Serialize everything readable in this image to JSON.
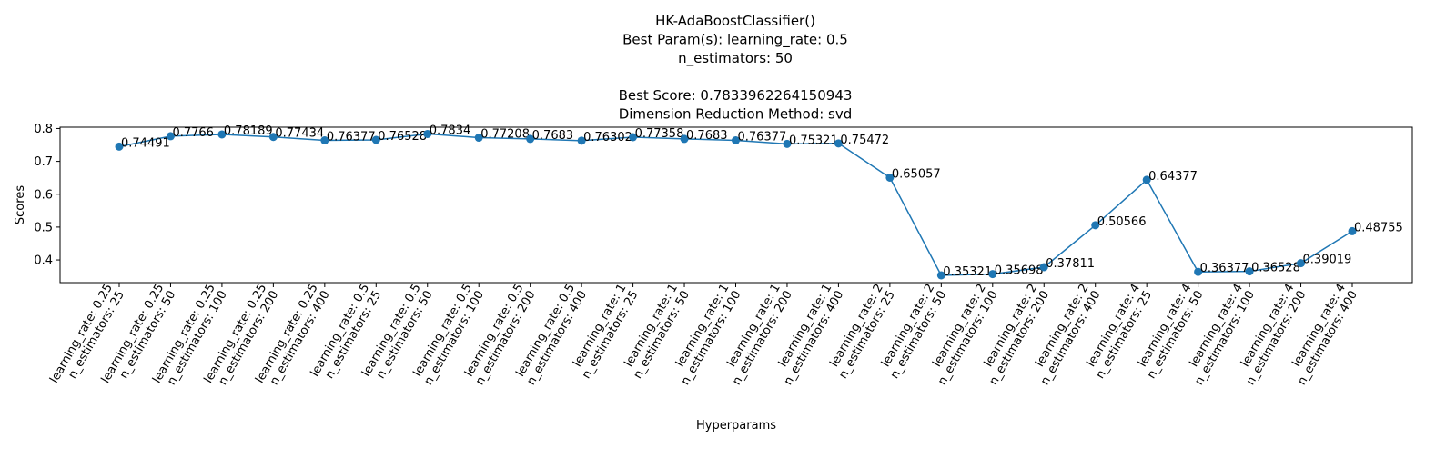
{
  "chart_data": {
    "type": "line",
    "title_lines": [
      "HK-AdaBoostClassifier()",
      "Best Param(s): learning_rate: 0.5",
      "n_estimators: 50",
      "",
      "Best Score: 0.7833962264150943",
      "Dimension Reduction Method: svd"
    ],
    "xlabel": "Hyperparams",
    "ylabel": "Scores",
    "categories": [
      [
        "learning_rate: 0.25",
        "n_estimators: 25"
      ],
      [
        "learning_rate: 0.25",
        "n_estimators: 50"
      ],
      [
        "learning_rate: 0.25",
        "n_estimators: 100"
      ],
      [
        "learning_rate: 0.25",
        "n_estimators: 200"
      ],
      [
        "learning_rate: 0.25",
        "n_estimators: 400"
      ],
      [
        "learning_rate: 0.5",
        "n_estimators: 25"
      ],
      [
        "learning_rate: 0.5",
        "n_estimators: 50"
      ],
      [
        "learning_rate: 0.5",
        "n_estimators: 100"
      ],
      [
        "learning_rate: 0.5",
        "n_estimators: 200"
      ],
      [
        "learning_rate: 0.5",
        "n_estimators: 400"
      ],
      [
        "learning_rate: 1",
        "n_estimators: 25"
      ],
      [
        "learning_rate: 1",
        "n_estimators: 50"
      ],
      [
        "learning_rate: 1",
        "n_estimators: 100"
      ],
      [
        "learning_rate: 1",
        "n_estimators: 200"
      ],
      [
        "learning_rate: 1",
        "n_estimators: 400"
      ],
      [
        "learning_rate: 2",
        "n_estimators: 25"
      ],
      [
        "learning_rate: 2",
        "n_estimators: 50"
      ],
      [
        "learning_rate: 2",
        "n_estimators: 100"
      ],
      [
        "learning_rate: 2",
        "n_estimators: 200"
      ],
      [
        "learning_rate: 2",
        "n_estimators: 400"
      ],
      [
        "learning_rate: 4",
        "n_estimators: 25"
      ],
      [
        "learning_rate: 4",
        "n_estimators: 50"
      ],
      [
        "learning_rate: 4",
        "n_estimators: 100"
      ],
      [
        "learning_rate: 4",
        "n_estimators: 200"
      ],
      [
        "learning_rate: 4",
        "n_estimators: 400"
      ]
    ],
    "values": [
      0.74491,
      0.7766,
      0.78189,
      0.77434,
      0.76377,
      0.76528,
      0.7834,
      0.77208,
      0.7683,
      0.76302,
      0.77358,
      0.7683,
      0.76377,
      0.75321,
      0.75472,
      0.65057,
      0.35321,
      0.35698,
      0.37811,
      0.50566,
      0.64377,
      0.36377,
      0.36528,
      0.39019,
      0.48755
    ],
    "value_labels": [
      "0.74491",
      "0.7766",
      "0.78189",
      "0.77434",
      "0.76377",
      "0.76528",
      "0.7834",
      "0.77208",
      "0.7683",
      "0.76302",
      "0.77358",
      "0.7683",
      "0.76377",
      "0.75321",
      "0.75472",
      "0.65057",
      "0.35321",
      "0.35698",
      "0.37811",
      "0.50566",
      "0.64377",
      "0.36377",
      "0.36528",
      "0.39019",
      "0.48755"
    ],
    "yticks": [
      0.4,
      0.5,
      0.6,
      0.7,
      0.8
    ],
    "ytick_labels": [
      "0.4",
      "0.5",
      "0.6",
      "0.7",
      "0.8"
    ],
    "ylim": [
      0.331,
      0.804
    ],
    "grid": false,
    "legend": "none",
    "colors": {
      "line": "#1f77b4",
      "marker": "#1f77b4",
      "axis": "#000000"
    }
  }
}
